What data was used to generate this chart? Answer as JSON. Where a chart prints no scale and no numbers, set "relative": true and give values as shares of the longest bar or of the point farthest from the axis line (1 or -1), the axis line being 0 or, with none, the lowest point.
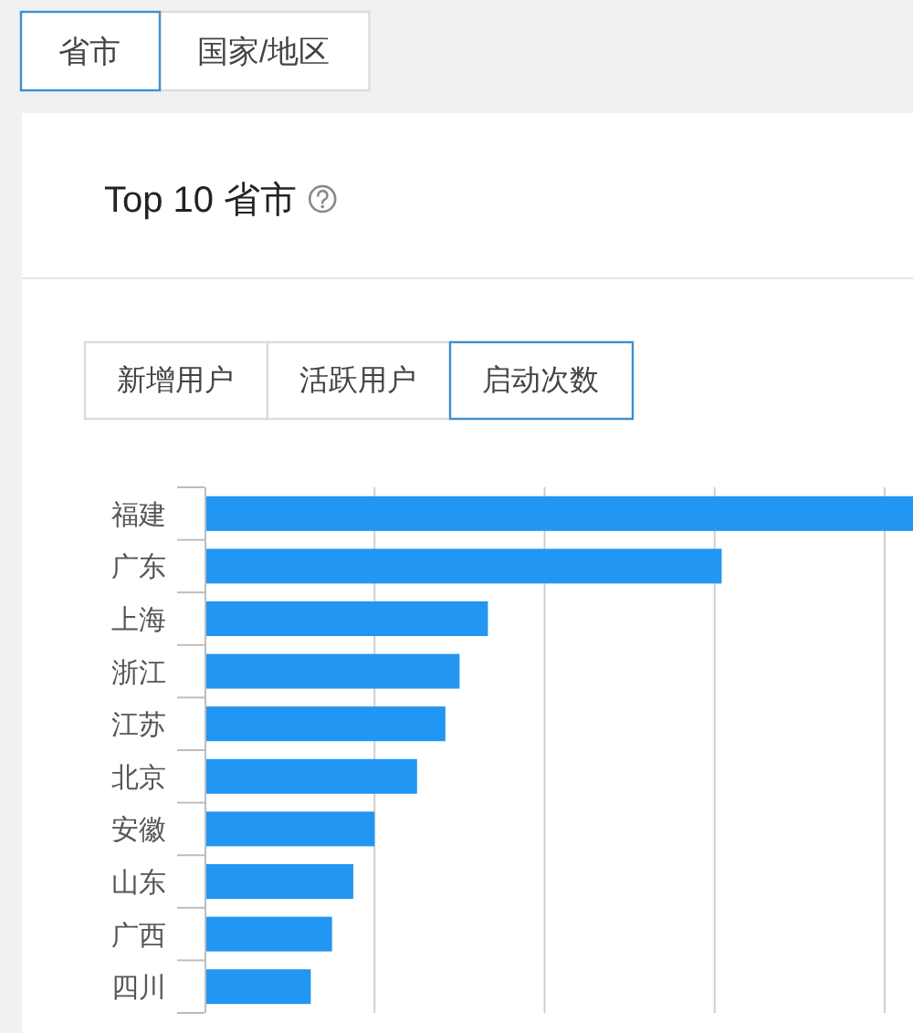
{
  "chart_data": {
    "type": "bar",
    "orientation": "horizontal",
    "title": "Top 10 省市",
    "annotations": [
      "省市",
      "国家/地区",
      "新增用户",
      "活跃用户",
      "启动次数"
    ],
    "categories": [
      "福建",
      "广东",
      "上海",
      "浙江",
      "江苏",
      "北京",
      "安徽",
      "山东",
      "广西",
      "四川"
    ],
    "values": [
      1,
      0.73,
      0.4,
      0.36,
      0.34,
      0.3,
      0.24,
      0.21,
      0.18,
      0.15
    ],
    "color": "#2196f3",
    "relative": true,
    "grid": "x"
  }
}
